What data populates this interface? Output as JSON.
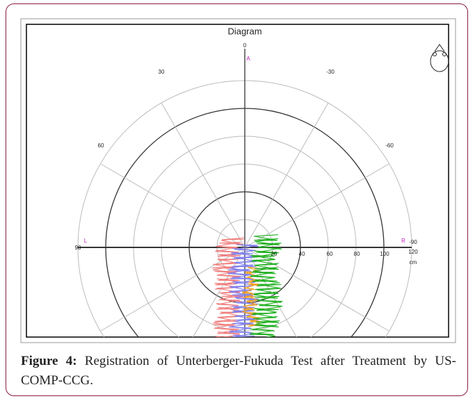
{
  "figure": {
    "diagram": {
      "title": "Diagram",
      "angle_labels": [
        "0",
        "30",
        "-30",
        "60",
        "-60",
        "90",
        "-90"
      ],
      "direction_labels": [
        "A",
        "L",
        "R"
      ],
      "distance_labels": [
        "20",
        "40",
        "60",
        "80",
        "100",
        "120"
      ],
      "unit": "cm"
    },
    "caption": {
      "label": "Figure 4:",
      "text": "Registration of Unterberger-Fukuda Test after Treatment by US-COMP-CCG."
    }
  }
}
